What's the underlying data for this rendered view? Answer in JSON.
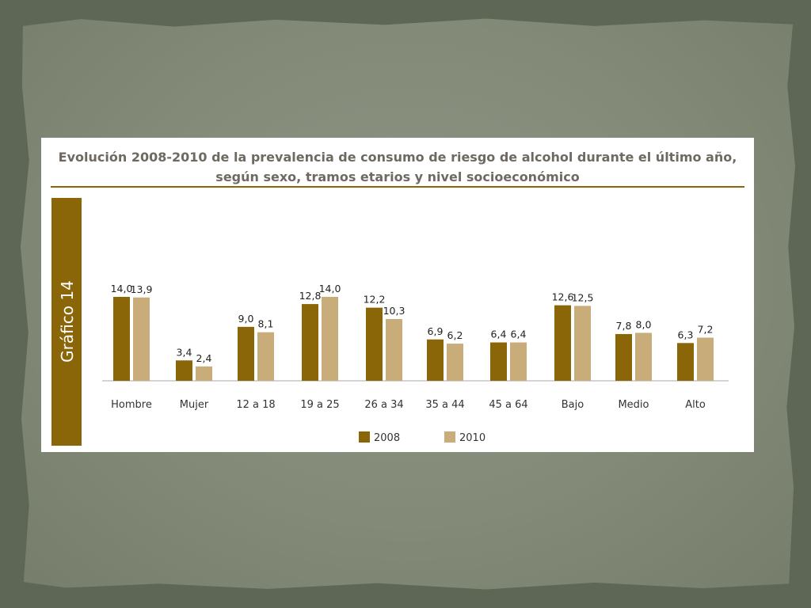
{
  "chart_data": {
    "type": "bar",
    "title_line1": "Evolución 2008-2010 de la prevalencia de consumo de riesgo de alcohol durante el último año,",
    "title_line2": "según sexo, tramos etarios y nivel socioeconómico",
    "side_label": "Gráfico 14",
    "categories": [
      "Hombre",
      "Mujer",
      "12 a 18",
      "19 a 25",
      "26 a 34",
      "35 a 44",
      "45 a 64",
      "Bajo",
      "Medio",
      "Alto"
    ],
    "series": [
      {
        "name": "2008",
        "values": [
          14.0,
          3.4,
          9.0,
          12.8,
          12.2,
          6.9,
          6.4,
          12.6,
          7.8,
          6.3
        ],
        "labels": [
          "14,0",
          "3,4",
          "9,0",
          "12,8",
          "12,2",
          "6,9",
          "6,4",
          "12,6",
          "7,8",
          "6,3"
        ]
      },
      {
        "name": "2010",
        "values": [
          13.9,
          2.4,
          8.1,
          14.0,
          10.3,
          6.2,
          6.4,
          12.5,
          8.0,
          7.2
        ],
        "labels": [
          "13,9",
          "2,4",
          "8,1",
          "14,0",
          "10,3",
          "6,2",
          "6,4",
          "12,5",
          "8,0",
          "7,2"
        ]
      }
    ],
    "ylim": [
      0,
      14
    ],
    "grid": false,
    "legend": "bottom",
    "colors": {
      "series2008": "#8a6608",
      "series2010": "#c8ac7a",
      "accent": "#8a6608"
    }
  }
}
